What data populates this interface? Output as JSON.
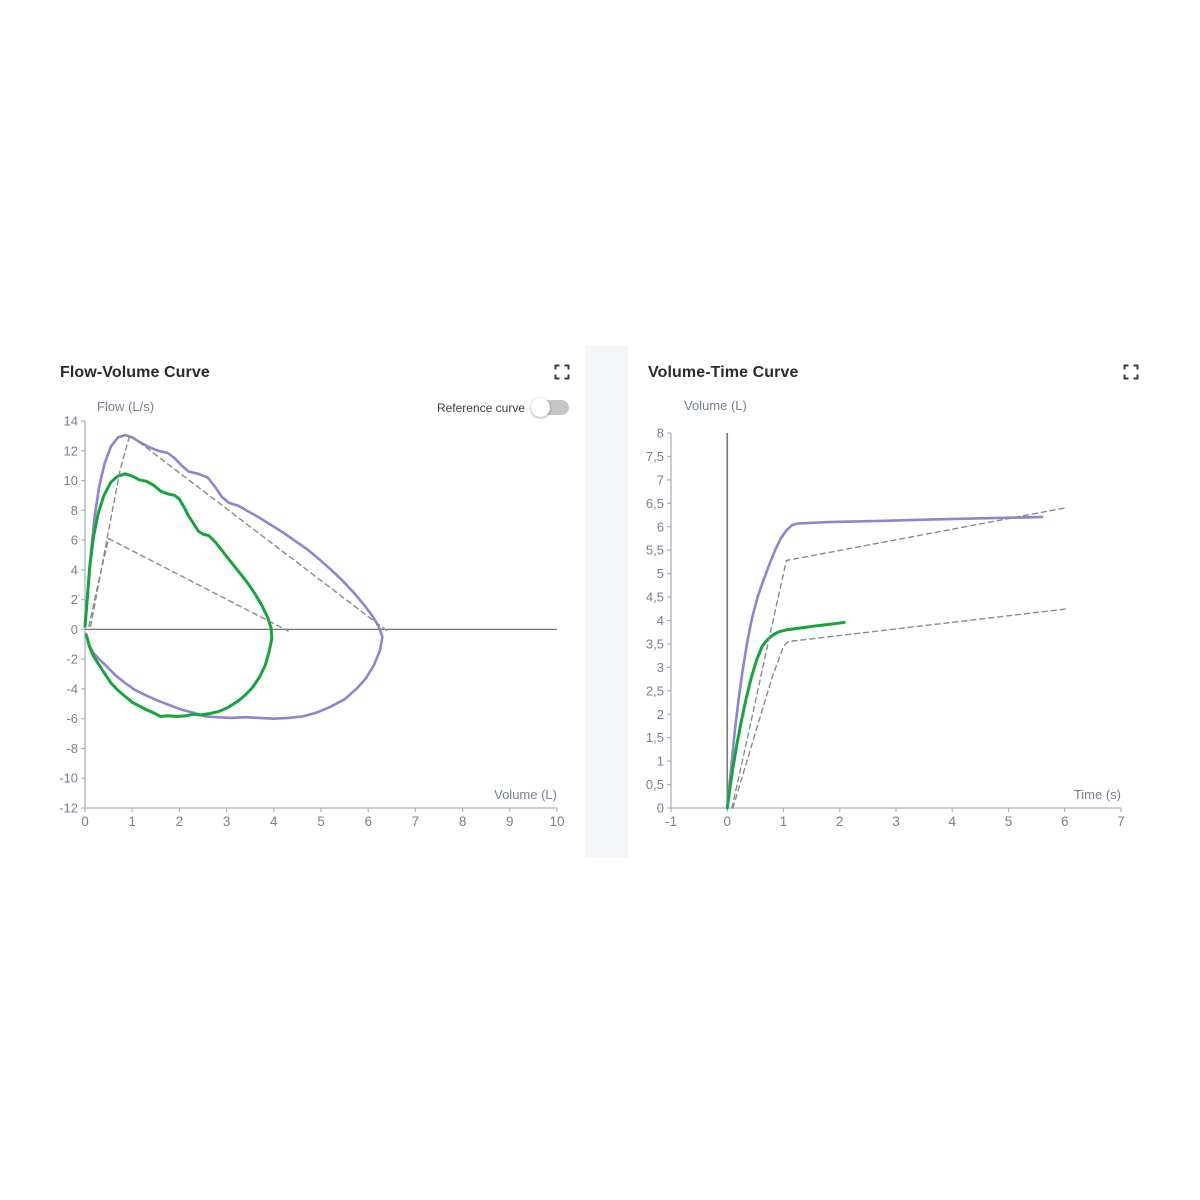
{
  "page": {
    "background": "#ffffff",
    "section_band_color": "#f4f6fa"
  },
  "colors": {
    "purple_series": "#8d85d2",
    "green_series": "#17a43c",
    "reference_dashed": "#8a8a8a",
    "axis_spine": "#aab2bd",
    "axis_dark_line": "#767676",
    "tick_text": "#77808f",
    "title_text": "#2b2b2f",
    "toggle_track": "#c6c6c9",
    "toggle_knob": "#ffffff"
  },
  "left_panel": {
    "reference_toggle_label": "Reference curve",
    "toggle_state": "off",
    "expand_icon": "fullscreen-corners"
  },
  "right_panel": {
    "expand_icon": "fullscreen-corners"
  },
  "chart_data": [
    {
      "id": "flow_volume",
      "type": "line",
      "title": "Flow-Volume Curve",
      "xlabel": "Volume (L)",
      "ylabel": "Flow (L/s)",
      "xlim": [
        0,
        10
      ],
      "ylim": [
        -12,
        14
      ],
      "grid": false,
      "zero_line_y": 0,
      "x_ticks": [
        {
          "v": 0,
          "l": "0"
        },
        {
          "v": 1,
          "l": "1"
        },
        {
          "v": 2,
          "l": "2"
        },
        {
          "v": 3,
          "l": "3"
        },
        {
          "v": 4,
          "l": "4"
        },
        {
          "v": 5,
          "l": "5"
        },
        {
          "v": 6,
          "l": "6"
        },
        {
          "v": 7,
          "l": "7"
        },
        {
          "v": 8,
          "l": "8"
        },
        {
          "v": 9,
          "l": "9"
        },
        {
          "v": 10,
          "l": "10"
        }
      ],
      "y_ticks": [
        {
          "v": 14,
          "l": "14"
        },
        {
          "v": 12,
          "l": "12"
        },
        {
          "v": 10,
          "l": "10"
        },
        {
          "v": 8,
          "l": "8"
        },
        {
          "v": 6,
          "l": "6"
        },
        {
          "v": 4,
          "l": "4"
        },
        {
          "v": 2,
          "l": "2"
        },
        {
          "v": 0,
          "l": "0"
        },
        {
          "v": -2,
          "l": "-2"
        },
        {
          "v": -4,
          "l": "-4"
        },
        {
          "v": -6,
          "l": "-6"
        },
        {
          "v": -8,
          "l": "-8"
        },
        {
          "v": -10,
          "l": "-10"
        },
        {
          "v": -12,
          "l": "-12"
        }
      ],
      "series": [
        {
          "name": "purple-flow-volume-loop",
          "color": "#8d85d2",
          "width": 2.6,
          "dash": null,
          "points": [
            [
              0,
              0.3
            ],
            [
              0.05,
              2
            ],
            [
              0.12,
              5
            ],
            [
              0.2,
              7.5
            ],
            [
              0.3,
              9.6
            ],
            [
              0.42,
              11.2
            ],
            [
              0.55,
              12.3
            ],
            [
              0.7,
              12.9
            ],
            [
              0.85,
              13.05
            ],
            [
              1.0,
              12.9
            ],
            [
              1.15,
              12.6
            ],
            [
              1.35,
              12.25
            ],
            [
              1.55,
              12.0
            ],
            [
              1.75,
              11.85
            ],
            [
              1.9,
              11.5
            ],
            [
              2.05,
              11.0
            ],
            [
              2.2,
              10.6
            ],
            [
              2.4,
              10.45
            ],
            [
              2.6,
              10.2
            ],
            [
              2.75,
              9.6
            ],
            [
              2.9,
              8.9
            ],
            [
              3.05,
              8.5
            ],
            [
              3.25,
              8.3
            ],
            [
              3.45,
              7.95
            ],
            [
              3.7,
              7.5
            ],
            [
              3.95,
              7.0
            ],
            [
              4.2,
              6.5
            ],
            [
              4.45,
              5.95
            ],
            [
              4.7,
              5.4
            ],
            [
              4.95,
              4.75
            ],
            [
              5.2,
              4.05
            ],
            [
              5.45,
              3.3
            ],
            [
              5.7,
              2.45
            ],
            [
              5.9,
              1.7
            ],
            [
              6.1,
              0.85
            ],
            [
              6.22,
              0.2
            ],
            [
              6.3,
              -0.5
            ],
            [
              6.25,
              -1.4
            ],
            [
              6.12,
              -2.4
            ],
            [
              5.95,
              -3.3
            ],
            [
              5.75,
              -4.0
            ],
            [
              5.5,
              -4.7
            ],
            [
              5.2,
              -5.2
            ],
            [
              4.9,
              -5.6
            ],
            [
              4.6,
              -5.85
            ],
            [
              4.3,
              -5.95
            ],
            [
              4.0,
              -6.0
            ],
            [
              3.7,
              -5.95
            ],
            [
              3.4,
              -5.9
            ],
            [
              3.1,
              -5.95
            ],
            [
              2.8,
              -5.9
            ],
            [
              2.55,
              -5.85
            ],
            [
              2.3,
              -5.6
            ],
            [
              2.05,
              -5.4
            ],
            [
              1.8,
              -5.1
            ],
            [
              1.55,
              -4.8
            ],
            [
              1.3,
              -4.45
            ],
            [
              1.05,
              -4.05
            ],
            [
              0.85,
              -3.6
            ],
            [
              0.65,
              -3.1
            ],
            [
              0.45,
              -2.45
            ],
            [
              0.3,
              -2.0
            ],
            [
              0.18,
              -1.6
            ],
            [
              0.08,
              -1.0
            ],
            [
              0.02,
              -0.3
            ]
          ]
        },
        {
          "name": "green-flow-volume-loop",
          "color": "#17a43c",
          "width": 3,
          "dash": null,
          "points": [
            [
              0,
              0.2
            ],
            [
              0.05,
              2.2
            ],
            [
              0.1,
              4.2
            ],
            [
              0.18,
              6.2
            ],
            [
              0.28,
              7.8
            ],
            [
              0.4,
              9.0
            ],
            [
              0.55,
              9.9
            ],
            [
              0.7,
              10.3
            ],
            [
              0.85,
              10.45
            ],
            [
              1.0,
              10.3
            ],
            [
              1.15,
              10.05
            ],
            [
              1.3,
              9.95
            ],
            [
              1.45,
              9.7
            ],
            [
              1.6,
              9.3
            ],
            [
              1.75,
              9.1
            ],
            [
              1.9,
              9.0
            ],
            [
              2.0,
              8.75
            ],
            [
              2.1,
              8.2
            ],
            [
              2.2,
              7.6
            ],
            [
              2.3,
              7.1
            ],
            [
              2.4,
              6.6
            ],
            [
              2.5,
              6.4
            ],
            [
              2.62,
              6.3
            ],
            [
              2.75,
              5.9
            ],
            [
              2.88,
              5.4
            ],
            [
              3.0,
              4.9
            ],
            [
              3.15,
              4.3
            ],
            [
              3.3,
              3.7
            ],
            [
              3.45,
              3.1
            ],
            [
              3.6,
              2.4
            ],
            [
              3.75,
              1.6
            ],
            [
              3.87,
              0.8
            ],
            [
              3.94,
              0.1
            ],
            [
              3.96,
              -0.6
            ],
            [
              3.9,
              -1.5
            ],
            [
              3.82,
              -2.4
            ],
            [
              3.7,
              -3.2
            ],
            [
              3.55,
              -3.9
            ],
            [
              3.4,
              -4.4
            ],
            [
              3.25,
              -4.8
            ],
            [
              3.05,
              -5.2
            ],
            [
              2.85,
              -5.5
            ],
            [
              2.65,
              -5.65
            ],
            [
              2.45,
              -5.75
            ],
            [
              2.3,
              -5.7
            ],
            [
              2.15,
              -5.8
            ],
            [
              1.95,
              -5.85
            ],
            [
              1.75,
              -5.8
            ],
            [
              1.6,
              -5.85
            ],
            [
              1.45,
              -5.6
            ],
            [
              1.3,
              -5.4
            ],
            [
              1.15,
              -5.15
            ],
            [
              1.0,
              -4.9
            ],
            [
              0.85,
              -4.5
            ],
            [
              0.7,
              -4.1
            ],
            [
              0.55,
              -3.6
            ],
            [
              0.4,
              -2.9
            ],
            [
              0.28,
              -2.3
            ],
            [
              0.18,
              -1.8
            ],
            [
              0.1,
              -1.2
            ],
            [
              0.03,
              -0.4
            ]
          ]
        },
        {
          "name": "reference-curve-main",
          "color": "#8a8a8a",
          "width": 1.4,
          "dash": "5 4",
          "points": [
            [
              0.12,
              0.2
            ],
            [
              0.45,
              5.8
            ],
            [
              0.75,
              10.8
            ],
            [
              0.95,
              13.05
            ],
            [
              6.4,
              -0.1
            ]
          ]
        },
        {
          "name": "reference-curve-secondary",
          "color": "#8a8a8a",
          "width": 1.4,
          "dash": "5 4",
          "points": [
            [
              0.08,
              0.2
            ],
            [
              0.3,
              3.4
            ],
            [
              0.5,
              6.1
            ],
            [
              4.3,
              -0.1
            ]
          ]
        }
      ]
    },
    {
      "id": "volume_time",
      "type": "line",
      "title": "Volume-Time Curve",
      "xlabel": "Time (s)",
      "ylabel": "Volume (L)",
      "xlim": [
        -1,
        7
      ],
      "ylim": [
        0,
        8
      ],
      "grid": false,
      "vertical_axis_line_x": 0,
      "x_ticks": [
        {
          "v": -1,
          "l": "-1"
        },
        {
          "v": 0,
          "l": "0"
        },
        {
          "v": 1,
          "l": "1"
        },
        {
          "v": 2,
          "l": "2"
        },
        {
          "v": 3,
          "l": "3"
        },
        {
          "v": 4,
          "l": "4"
        },
        {
          "v": 5,
          "l": "5"
        },
        {
          "v": 6,
          "l": "6"
        },
        {
          "v": 7,
          "l": "7"
        }
      ],
      "y_ticks": [
        {
          "v": 8,
          "l": "8"
        },
        {
          "v": 7.5,
          "l": "7,5"
        },
        {
          "v": 7,
          "l": "7"
        },
        {
          "v": 6.5,
          "l": "6,5"
        },
        {
          "v": 6,
          "l": "6"
        },
        {
          "v": 5.5,
          "l": "5,5"
        },
        {
          "v": 5,
          "l": "5"
        },
        {
          "v": 4.5,
          "l": "4,5"
        },
        {
          "v": 4,
          "l": "4"
        },
        {
          "v": 3.5,
          "l": "3,5"
        },
        {
          "v": 3,
          "l": "3"
        },
        {
          "v": 2.5,
          "l": "2,5"
        },
        {
          "v": 2,
          "l": "2"
        },
        {
          "v": 1.5,
          "l": "1,5"
        },
        {
          "v": 1,
          "l": "1"
        },
        {
          "v": 0.5,
          "l": "0,5"
        },
        {
          "v": 0,
          "l": "0"
        }
      ],
      "series": [
        {
          "name": "purple-volume-time",
          "color": "#8d85d2",
          "width": 2.6,
          "dash": null,
          "points": [
            [
              0,
              0
            ],
            [
              0.04,
              0.5
            ],
            [
              0.09,
              1.1
            ],
            [
              0.14,
              1.7
            ],
            [
              0.2,
              2.3
            ],
            [
              0.27,
              2.9
            ],
            [
              0.35,
              3.5
            ],
            [
              0.44,
              4.05
            ],
            [
              0.54,
              4.5
            ],
            [
              0.64,
              4.85
            ],
            [
              0.75,
              5.2
            ],
            [
              0.85,
              5.5
            ],
            [
              0.95,
              5.75
            ],
            [
              1.05,
              5.92
            ],
            [
              1.15,
              6.03
            ],
            [
              1.25,
              6.07
            ],
            [
              1.8,
              6.1
            ],
            [
              2.6,
              6.12
            ],
            [
              3.5,
              6.15
            ],
            [
              4.5,
              6.18
            ],
            [
              5.3,
              6.2
            ],
            [
              5.6,
              6.21
            ]
          ]
        },
        {
          "name": "green-volume-time",
          "color": "#17a43c",
          "width": 3,
          "dash": null,
          "points": [
            [
              0,
              0
            ],
            [
              0.05,
              0.45
            ],
            [
              0.1,
              0.85
            ],
            [
              0.17,
              1.35
            ],
            [
              0.25,
              1.85
            ],
            [
              0.33,
              2.3
            ],
            [
              0.42,
              2.75
            ],
            [
              0.52,
              3.15
            ],
            [
              0.62,
              3.45
            ],
            [
              0.72,
              3.6
            ],
            [
              0.82,
              3.7
            ],
            [
              0.92,
              3.76
            ],
            [
              1.05,
              3.8
            ],
            [
              1.3,
              3.84
            ],
            [
              1.6,
              3.89
            ],
            [
              1.9,
              3.93
            ],
            [
              2.08,
              3.96
            ]
          ]
        },
        {
          "name": "reference-volume-time-upper",
          "color": "#8a8a8a",
          "width": 1.4,
          "dash": "5 4",
          "points": [
            [
              0.08,
              0
            ],
            [
              0.25,
              0.9
            ],
            [
              0.45,
              2.0
            ],
            [
              0.65,
              3.1
            ],
            [
              0.85,
              4.2
            ],
            [
              1.0,
              5.0
            ],
            [
              1.05,
              5.28
            ],
            [
              6.0,
              6.4
            ]
          ]
        },
        {
          "name": "reference-volume-time-lower",
          "color": "#8a8a8a",
          "width": 1.4,
          "dash": "5 4",
          "points": [
            [
              0.1,
              0
            ],
            [
              0.3,
              0.8
            ],
            [
              0.55,
              1.8
            ],
            [
              0.8,
              2.8
            ],
            [
              1.0,
              3.45
            ],
            [
              1.08,
              3.55
            ],
            [
              6.05,
              4.25
            ]
          ]
        }
      ]
    }
  ]
}
